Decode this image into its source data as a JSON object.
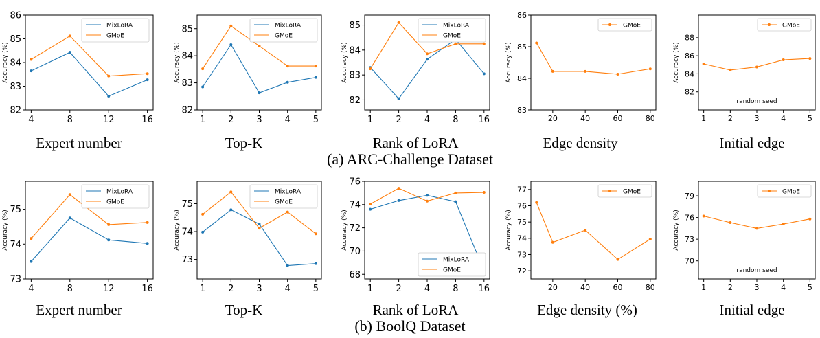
{
  "colors": {
    "MixLoRA": "#1f77b4",
    "GMoE": "#ff7f0e"
  },
  "captions": {
    "row_a": "(a) ARC-Challenge Dataset",
    "row_b": "(b) BoolQ Dataset"
  },
  "chart_data": [
    {
      "type": "line",
      "subtitle": "Expert number",
      "ylabel": "Accuracy (%)",
      "x": [
        "4",
        "8",
        "12",
        "16"
      ],
      "ylim": [
        82,
        86
      ],
      "yticks": [
        "82",
        "83",
        "84",
        "85",
        "86"
      ],
      "legend": "upper-right",
      "series": [
        {
          "name": "MixLoRA",
          "values": [
            83.65,
            84.43,
            82.58,
            83.27
          ]
        },
        {
          "name": "GMoE",
          "values": [
            84.13,
            85.12,
            83.43,
            83.53
          ]
        }
      ]
    },
    {
      "type": "line",
      "subtitle": "Top-K",
      "ylabel": "Accuracy (%)",
      "x": [
        "1",
        "2",
        "3",
        "4",
        "5"
      ],
      "ylim": [
        82,
        85.5
      ],
      "yticks": [
        "82",
        "83",
        "84",
        "85"
      ],
      "legend": "upper-right",
      "series": [
        {
          "name": "MixLoRA",
          "values": [
            82.85,
            84.41,
            82.63,
            83.02,
            83.2
          ]
        },
        {
          "name": "GMoE",
          "values": [
            83.52,
            85.1,
            84.36,
            83.62,
            83.62
          ]
        }
      ]
    },
    {
      "type": "line",
      "subtitle": "Rank of LoRA",
      "ylabel": "Accuracy (%)",
      "x": [
        "1",
        "2",
        "4",
        "8",
        "16"
      ],
      "ylim": [
        81.6,
        85.4
      ],
      "yticks": [
        "82",
        "83",
        "84",
        "85"
      ],
      "legend": "upper-right",
      "series": [
        {
          "name": "MixLoRA",
          "values": [
            83.3,
            82.05,
            83.63,
            84.43,
            83.05
          ]
        },
        {
          "name": "GMoE",
          "values": [
            83.25,
            85.1,
            83.85,
            84.25,
            84.25
          ]
        }
      ]
    },
    {
      "type": "line",
      "subtitle": "Edge density",
      "ylabel": "Accuracy (%)",
      "x": [
        10,
        20,
        40,
        60,
        80
      ],
      "xticks": [
        "20",
        "40",
        "60",
        "80"
      ],
      "ylim": [
        83,
        86
      ],
      "yticks": [
        "83",
        "84",
        "85",
        "86"
      ],
      "legend": "upper-right",
      "series": [
        {
          "name": "GMoE",
          "values": [
            85.12,
            84.22,
            84.22,
            84.13,
            84.3
          ]
        }
      ]
    },
    {
      "type": "line",
      "subtitle": "Initial edge",
      "ylabel": "Accuracy (%)",
      "x": [
        "1",
        "2",
        "3",
        "4",
        "5"
      ],
      "ylim": [
        80,
        90.5
      ],
      "yticks": [
        "82",
        "84",
        "86",
        "88"
      ],
      "legend": "upper-right",
      "annotation": "random seed",
      "series": [
        {
          "name": "GMoE",
          "values": [
            85.1,
            84.42,
            84.76,
            85.55,
            85.7
          ]
        }
      ]
    },
    {
      "type": "line",
      "subtitle": "Expert number",
      "ylabel": "Accuracy (%)",
      "x": [
        "4",
        "8",
        "12",
        "16"
      ],
      "ylim": [
        73,
        75.8
      ],
      "yticks": [
        "73",
        "74",
        "75"
      ],
      "legend": "upper-right",
      "series": [
        {
          "name": "MixLoRA",
          "values": [
            73.5,
            74.75,
            74.12,
            74.02
          ]
        },
        {
          "name": "GMoE",
          "values": [
            74.16,
            75.42,
            74.56,
            74.62
          ]
        }
      ]
    },
    {
      "type": "line",
      "subtitle": "Top-K",
      "ylabel": "Accuracy (%)",
      "x": [
        "1",
        "2",
        "3",
        "4",
        "5"
      ],
      "ylim": [
        72.3,
        75.8
      ],
      "yticks": [
        "73",
        "74",
        "75"
      ],
      "legend": "upper-right",
      "series": [
        {
          "name": "MixLoRA",
          "values": [
            73.98,
            74.78,
            74.27,
            72.78,
            72.85
          ]
        },
        {
          "name": "GMoE",
          "values": [
            74.62,
            75.42,
            74.12,
            74.7,
            73.92
          ]
        }
      ]
    },
    {
      "type": "line",
      "subtitle": "Rank of LoRA",
      "ylabel": "Accuracy (%)",
      "x": [
        "1",
        "2",
        "4",
        "8",
        "16"
      ],
      "ylim": [
        67.6,
        76
      ],
      "yticks": [
        "68",
        "70",
        "72",
        "74",
        "76"
      ],
      "legend": "lower-right",
      "series": [
        {
          "name": "MixLoRA",
          "values": [
            73.6,
            74.35,
            74.8,
            74.25,
            68.3
          ]
        },
        {
          "name": "GMoE",
          "values": [
            74.05,
            75.4,
            74.3,
            75.0,
            75.05
          ]
        }
      ]
    },
    {
      "type": "line",
      "subtitle": "Edge density (%)",
      "ylabel": "Accuracy (%)",
      "x": [
        10,
        20,
        40,
        60,
        80
      ],
      "xticks": [
        "20",
        "40",
        "60",
        "80"
      ],
      "ylim": [
        71.5,
        77.5
      ],
      "yticks": [
        "72",
        "73",
        "74",
        "75",
        "76",
        "77"
      ],
      "legend": "upper-right",
      "series": [
        {
          "name": "GMoE",
          "values": [
            76.2,
            73.75,
            74.5,
            72.7,
            73.95
          ]
        }
      ]
    },
    {
      "type": "line",
      "subtitle": "Initial edge",
      "ylabel": "Accuracy (%)",
      "x": [
        "1",
        "2",
        "3",
        "4",
        "5"
      ],
      "ylim": [
        67.5,
        81
      ],
      "yticks": [
        "70",
        "73",
        "76",
        "79"
      ],
      "legend": "upper-right",
      "annotation": "random seed",
      "series": [
        {
          "name": "GMoE",
          "values": [
            76.2,
            75.3,
            74.5,
            75.1,
            75.8
          ]
        }
      ]
    }
  ]
}
